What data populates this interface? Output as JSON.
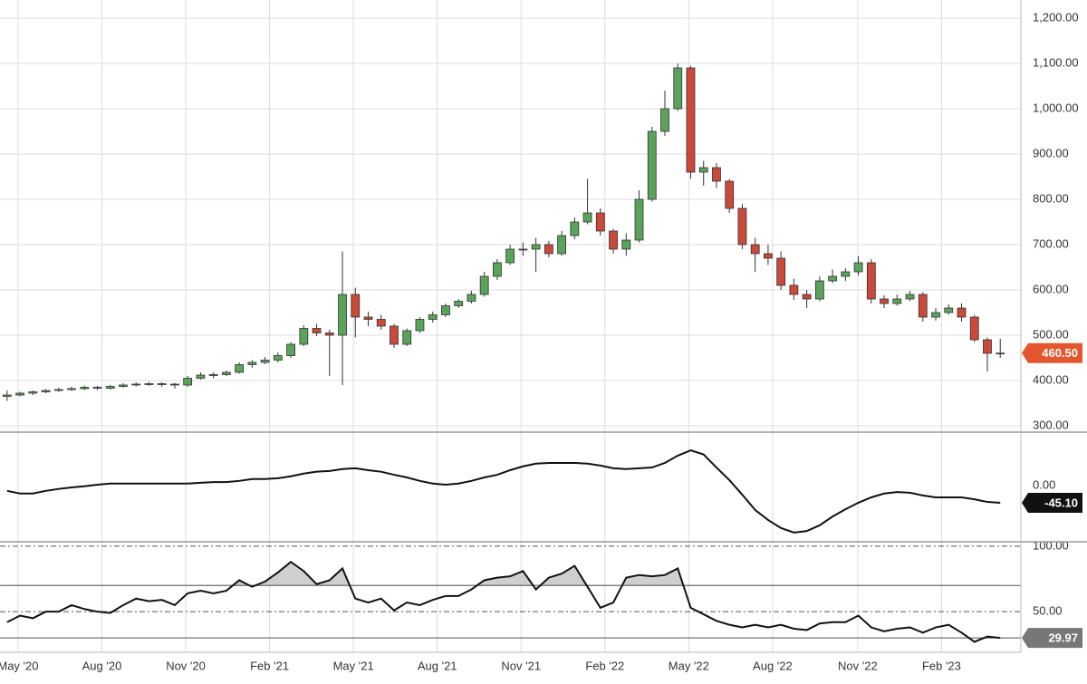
{
  "chart_data": [
    {
      "type": "candlestick",
      "x": [
        0,
        2,
        4,
        6,
        8,
        10,
        12,
        14,
        16,
        18,
        20,
        22,
        24,
        26,
        28,
        30,
        32,
        34,
        36,
        38,
        40,
        42,
        44,
        46,
        48,
        50,
        52,
        54,
        56,
        58,
        60,
        62,
        64,
        66,
        68,
        70,
        72,
        74,
        76,
        78,
        80,
        82,
        84,
        86,
        88,
        90,
        92,
        94,
        96,
        98,
        100,
        102,
        104,
        106,
        108,
        110,
        112,
        114,
        116,
        118,
        120,
        122,
        124,
        126,
        128,
        130,
        132,
        134,
        136,
        138,
        140,
        142,
        144,
        146,
        148,
        150,
        152,
        154
      ],
      "open": [
        365,
        368,
        372,
        375,
        378,
        380,
        382,
        385,
        383,
        387,
        390,
        392,
        393,
        392,
        390,
        405,
        412,
        413,
        418,
        435,
        440,
        445,
        455,
        480,
        515,
        505,
        500,
        590,
        540,
        535,
        520,
        480,
        510,
        535,
        545,
        565,
        575,
        590,
        630,
        660,
        690,
        690,
        700,
        680,
        720,
        750,
        770,
        730,
        690,
        710,
        800,
        950,
        1000,
        1090,
        860,
        870,
        840,
        780,
        700,
        680,
        670,
        610,
        590,
        580,
        620,
        630,
        640,
        660,
        580,
        570,
        580,
        590,
        540,
        550,
        560,
        540,
        490,
        460
      ],
      "high": [
        378,
        375,
        378,
        381,
        384,
        386,
        389,
        388,
        390,
        394,
        396,
        397,
        396,
        395,
        410,
        418,
        418,
        422,
        440,
        445,
        452,
        462,
        485,
        522,
        525,
        512,
        685,
        605,
        552,
        545,
        525,
        515,
        540,
        552,
        570,
        580,
        598,
        640,
        668,
        700,
        705,
        715,
        708,
        730,
        760,
        845,
        780,
        735,
        725,
        820,
        960,
        1040,
        1100,
        1095,
        885,
        880,
        845,
        790,
        715,
        700,
        685,
        625,
        600,
        630,
        645,
        648,
        675,
        668,
        588,
        590,
        598,
        595,
        560,
        568,
        570,
        545,
        495,
        492
      ],
      "low": [
        355,
        365,
        368,
        372,
        375,
        377,
        379,
        379,
        380,
        384,
        387,
        388,
        386,
        382,
        386,
        402,
        405,
        410,
        415,
        428,
        436,
        440,
        450,
        476,
        498,
        410,
        390,
        495,
        520,
        512,
        472,
        476,
        505,
        528,
        540,
        560,
        570,
        585,
        622,
        655,
        675,
        640,
        672,
        675,
        712,
        745,
        720,
        680,
        675,
        705,
        795,
        940,
        995,
        845,
        830,
        825,
        770,
        690,
        640,
        655,
        600,
        578,
        560,
        575,
        615,
        620,
        632,
        570,
        560,
        565,
        575,
        530,
        532,
        545,
        530,
        485,
        420,
        450
      ],
      "close": [
        368,
        372,
        375,
        378,
        380,
        382,
        385,
        383,
        387,
        390,
        392,
        393,
        392,
        390,
        405,
        412,
        413,
        418,
        435,
        440,
        445,
        455,
        480,
        515,
        505,
        500,
        590,
        540,
        535,
        520,
        480,
        510,
        535,
        545,
        565,
        575,
        590,
        630,
        660,
        690,
        690,
        700,
        680,
        720,
        750,
        770,
        730,
        690,
        710,
        800,
        950,
        1000,
        1090,
        860,
        870,
        840,
        780,
        700,
        680,
        670,
        610,
        590,
        580,
        620,
        630,
        640,
        660,
        580,
        570,
        580,
        590,
        540,
        550,
        560,
        540,
        490,
        460,
        460.5
      ],
      "up_color": "#5aa35a",
      "down_color": "#c94a3a",
      "badge_color": "#e4572e",
      "last": {
        "value": 460.5,
        "label": "460.50"
      },
      "xlim": [
        -1.1,
        157.2
      ],
      "xticks": [
        {
          "value": 1.7,
          "label": "May '20"
        },
        {
          "value": 14.7,
          "label": "Aug '20"
        },
        {
          "value": 27.7,
          "label": "Nov '20"
        },
        {
          "value": 40.7,
          "label": "Feb '21"
        },
        {
          "value": 53.7,
          "label": "May '21"
        },
        {
          "value": 66.7,
          "label": "Aug '21"
        },
        {
          "value": 79.7,
          "label": "Nov '21"
        },
        {
          "value": 92.7,
          "label": "Feb '22"
        },
        {
          "value": 105.7,
          "label": "May '22"
        },
        {
          "value": 118.7,
          "label": "Aug '22"
        },
        {
          "value": 131.9,
          "label": "Nov '22"
        },
        {
          "value": 144.9,
          "label": "Feb '23"
        }
      ],
      "ylim": [
        286,
        1240
      ],
      "yticks": [
        {
          "value": 300,
          "label": "300.00"
        },
        {
          "value": 400,
          "label": "400.00"
        },
        {
          "value": 500,
          "label": "500.00"
        },
        {
          "value": 600,
          "label": "600.00"
        },
        {
          "value": 700,
          "label": "700.00"
        },
        {
          "value": 800,
          "label": "800.00"
        },
        {
          "value": 900,
          "label": "900.00"
        },
        {
          "value": 1000,
          "label": "1,000.00"
        },
        {
          "value": 1100,
          "label": "1,100.00"
        },
        {
          "value": 1200,
          "label": "1,200.00"
        }
      ],
      "grid": true
    },
    {
      "type": "line",
      "values": [
        -14,
        -21,
        -21,
        -14,
        -9,
        -5,
        -2,
        2,
        5,
        5,
        5,
        5,
        5,
        5,
        5,
        7,
        9,
        9,
        12,
        17,
        17,
        19,
        24,
        31,
        36,
        38,
        43,
        45,
        40,
        36,
        28,
        21,
        12,
        5,
        2,
        5,
        12,
        21,
        28,
        40,
        50,
        57,
        59,
        59,
        59,
        57,
        52,
        45,
        43,
        45,
        47,
        59,
        78,
        92,
        81,
        47,
        14,
        -24,
        -64,
        -90,
        -111,
        -123,
        -119,
        -104,
        -81,
        -62,
        -45,
        -31,
        -21,
        -17,
        -19,
        -26,
        -31,
        -31,
        -31,
        -36,
        -43,
        -45.1
      ],
      "color": "#111111",
      "badge_color": "#111111",
      "last": {
        "value": -45.1,
        "label": "-45.10"
      },
      "ylim": [
        -147,
        137
      ],
      "yticks": [
        {
          "value": 0,
          "label": "0.00"
        }
      ]
    },
    {
      "type": "line",
      "values": [
        42,
        47,
        45,
        50,
        50,
        55,
        52,
        50,
        49,
        55,
        60,
        58,
        59,
        55,
        64,
        66,
        64,
        66,
        74,
        69,
        73,
        80,
        88,
        81,
        71,
        74,
        83,
        60,
        57,
        60,
        51,
        57,
        55,
        59,
        62,
        62,
        67,
        74,
        76,
        77,
        81,
        67,
        76,
        79,
        85,
        69,
        53,
        57,
        76,
        78,
        77,
        78,
        83,
        53,
        48,
        43,
        40,
        38,
        40,
        38,
        40,
        37,
        36,
        41,
        42,
        42,
        47,
        38,
        35,
        37,
        38,
        34,
        38,
        40,
        34,
        27,
        31,
        29.97
      ],
      "color": "#111111",
      "badge_color": "#777777",
      "shade_color": "#cfcfcf",
      "last": {
        "value": 29.97,
        "label": "29.97"
      },
      "upper": 70,
      "lower": 30,
      "ylim": [
        19,
        102
      ],
      "yticks": [
        {
          "value": 100,
          "label": "100.00"
        },
        {
          "value": 50,
          "label": "50.00"
        }
      ]
    }
  ]
}
